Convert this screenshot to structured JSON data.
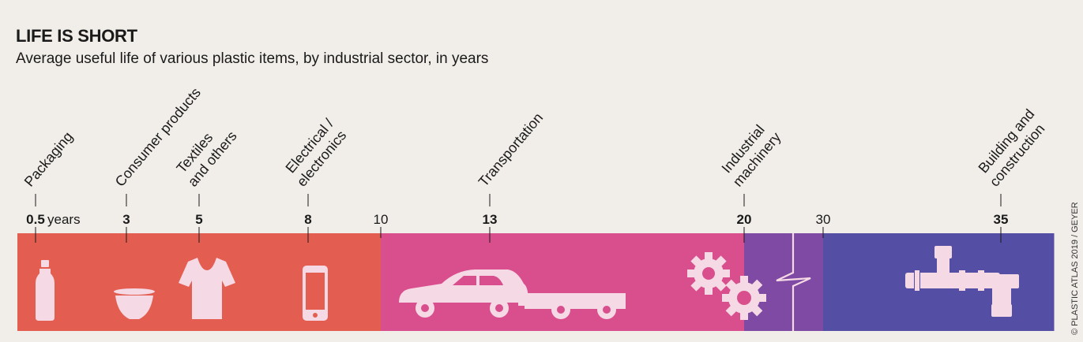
{
  "header": {
    "title": "LIFE IS SHORT",
    "subtitle": "Average useful life of various plastic items, by industrial sector, in years"
  },
  "credit": "© PLASTIC ATLAS 2019 / GEYER",
  "colors": {
    "background": "#f1eeea",
    "segment_0_10": "#e35d51",
    "segment_10_20": "#d94f8d",
    "segment_20_30": "#7f4aa4",
    "segment_30_plus": "#544fa4",
    "icon": "#f5d9e4"
  },
  "chart_data": {
    "type": "timeline",
    "unit": "years",
    "axis_break": {
      "between": [
        20,
        30
      ]
    },
    "scale_ticks": [
      10,
      30
    ],
    "segments": [
      {
        "from": 0,
        "to": 10,
        "color": "#e35d51"
      },
      {
        "from": 10,
        "to": 20,
        "color": "#d94f8d"
      },
      {
        "from": 20,
        "to": 30,
        "color": "#7f4aa4"
      },
      {
        "from": 30,
        "to": 36.5,
        "color": "#544fa4"
      }
    ],
    "points": [
      {
        "label_lines": [
          "Packaging"
        ],
        "value": 0.5,
        "value_label": "0.5",
        "icon": "bottle-icon"
      },
      {
        "label_lines": [
          "Consumer products"
        ],
        "value": 3,
        "value_label": "3",
        "icon": "bowl-icon"
      },
      {
        "label_lines": [
          "Textiles",
          "and others"
        ],
        "value": 5,
        "value_label": "5",
        "icon": "tshirt-icon"
      },
      {
        "label_lines": [
          "Electrical /",
          "electronics"
        ],
        "value": 8,
        "value_label": "8",
        "icon": "phone-icon"
      },
      {
        "label_lines": [
          "Transportation"
        ],
        "value": 13,
        "value_label": "13",
        "icon": "car-trailer-icon"
      },
      {
        "label_lines": [
          "Industrial",
          "machinery"
        ],
        "value": 20,
        "value_label": "20",
        "icon": "gears-icon"
      },
      {
        "label_lines": [
          "Building and",
          "construction"
        ],
        "value": 35,
        "value_label": "35",
        "icon": "pipes-icon"
      }
    ]
  }
}
